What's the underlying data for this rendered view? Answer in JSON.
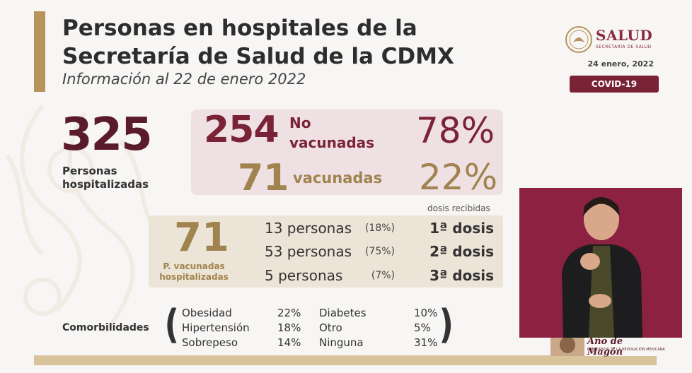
{
  "header": {
    "title_line1": "Personas en hospitales de la",
    "title_line2": "Secretaría de Salud de la CDMX",
    "subtitle": "Información al 22 de enero 2022"
  },
  "brand": {
    "name": "SALUD",
    "tagline": "SECRETARÍA DE SALUD",
    "date": "24 enero, 2022",
    "badge": "COVID-19",
    "accent": "#7a2236",
    "gold": "#a0834f"
  },
  "totals": {
    "hospitalized": "325",
    "hospitalized_label": "Personas hospitalizadas",
    "unvaccinated": "254",
    "unvaccinated_label_1": "No",
    "unvaccinated_label_2": "vacunadas",
    "unvaccinated_pct": "78%",
    "vaccinated": "71",
    "vaccinated_label": "vacunadas",
    "vaccinated_pct": "22%"
  },
  "doses": {
    "caption": "dosis recibidas",
    "total": "71",
    "total_label_1": "P. vacunadas",
    "total_label_2": "hospitalizadas",
    "rows": [
      {
        "persons": "13 personas",
        "pct": "(18%)",
        "label": "1ª dosis"
      },
      {
        "persons": "53 personas",
        "pct": "(75%)",
        "label": "2ª dosis"
      },
      {
        "persons": "5 personas",
        "pct": "(7%)",
        "label": "3ª dosis"
      }
    ]
  },
  "comorbidities": {
    "title": "Comorbilidades",
    "col1": [
      {
        "name": "Obesidad",
        "pct": "22%"
      },
      {
        "name": "Hipertensión",
        "pct": "18%"
      },
      {
        "name": "Sobrepeso",
        "pct": "14%"
      }
    ],
    "col2": [
      {
        "name": "Diabetes",
        "pct": "10%"
      },
      {
        "name": "Otro",
        "pct": "5%"
      },
      {
        "name": "Ninguna",
        "pct": "31%"
      }
    ]
  },
  "overlay": {
    "decor_text": "Año de Magón",
    "decor_sub": "PRECURSOR DE LA REVOLUCIÓN MEXICANA"
  }
}
